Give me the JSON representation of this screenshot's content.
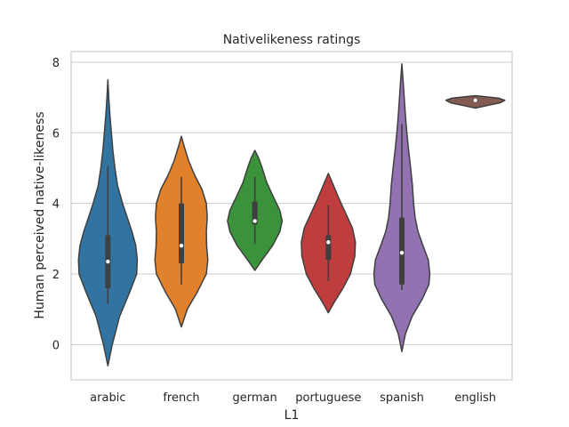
{
  "chart_data": {
    "type": "violin",
    "title": "Nativelikeness ratings",
    "xlabel": "L1",
    "ylabel": "Human perceived native-likeness",
    "ylim": [
      -1.0,
      8.3
    ],
    "yticks": [
      0,
      2,
      4,
      6,
      8
    ],
    "grid": true,
    "legend": "none",
    "categories": [
      "arabic",
      "french",
      "german",
      "portuguese",
      "spanish",
      "english"
    ],
    "colors": [
      "#3274a1",
      "#e1812c",
      "#3a923a",
      "#c03d3e",
      "#9372b2",
      "#845b53"
    ],
    "series": [
      {
        "category": "arabic",
        "kde_range": [
          -0.6,
          7.5
        ],
        "median": 2.35,
        "q1": 1.6,
        "q3": 3.1,
        "whisker_low": 1.15,
        "whisker_high": 5.05,
        "profile": [
          [
            -0.6,
            0.0
          ],
          [
            0.0,
            0.15
          ],
          [
            0.8,
            0.4
          ],
          [
            1.5,
            0.75
          ],
          [
            2.0,
            0.98
          ],
          [
            2.4,
            1.0
          ],
          [
            2.8,
            0.95
          ],
          [
            3.2,
            0.82
          ],
          [
            3.6,
            0.66
          ],
          [
            4.0,
            0.5
          ],
          [
            4.5,
            0.33
          ],
          [
            5.0,
            0.24
          ],
          [
            5.5,
            0.17
          ],
          [
            6.0,
            0.12
          ],
          [
            6.5,
            0.07
          ],
          [
            7.0,
            0.03
          ],
          [
            7.5,
            0.0
          ]
        ]
      },
      {
        "category": "french",
        "kde_range": [
          0.5,
          5.9
        ],
        "median": 2.8,
        "q1": 2.3,
        "q3": 4.0,
        "whisker_low": 1.7,
        "whisker_high": 4.75,
        "profile": [
          [
            0.5,
            0.0
          ],
          [
            1.0,
            0.2
          ],
          [
            1.5,
            0.55
          ],
          [
            2.0,
            0.85
          ],
          [
            2.4,
            0.9
          ],
          [
            2.8,
            0.86
          ],
          [
            3.2,
            0.85
          ],
          [
            3.6,
            0.88
          ],
          [
            4.0,
            0.85
          ],
          [
            4.4,
            0.7
          ],
          [
            4.8,
            0.45
          ],
          [
            5.2,
            0.25
          ],
          [
            5.6,
            0.1
          ],
          [
            5.9,
            0.0
          ]
        ]
      },
      {
        "category": "german",
        "kde_range": [
          2.1,
          5.5
        ],
        "median": 3.5,
        "q1": 3.4,
        "q3": 4.05,
        "whisker_low": 2.85,
        "whisker_high": 4.75,
        "profile": [
          [
            2.1,
            0.0
          ],
          [
            2.4,
            0.25
          ],
          [
            2.8,
            0.6
          ],
          [
            3.2,
            0.85
          ],
          [
            3.5,
            0.93
          ],
          [
            3.8,
            0.85
          ],
          [
            4.2,
            0.62
          ],
          [
            4.6,
            0.4
          ],
          [
            5.0,
            0.25
          ],
          [
            5.3,
            0.12
          ],
          [
            5.5,
            0.0
          ]
        ]
      },
      {
        "category": "portuguese",
        "kde_range": [
          0.9,
          4.85
        ],
        "median": 2.9,
        "q1": 2.4,
        "q3": 3.1,
        "whisker_low": 1.8,
        "whisker_high": 3.95,
        "profile": [
          [
            0.9,
            0.0
          ],
          [
            1.2,
            0.2
          ],
          [
            1.6,
            0.5
          ],
          [
            2.0,
            0.75
          ],
          [
            2.5,
            0.9
          ],
          [
            2.9,
            0.92
          ],
          [
            3.3,
            0.82
          ],
          [
            3.7,
            0.6
          ],
          [
            4.1,
            0.38
          ],
          [
            4.5,
            0.18
          ],
          [
            4.85,
            0.0
          ]
        ]
      },
      {
        "category": "spanish",
        "kde_range": [
          -0.2,
          7.95
        ],
        "median": 2.6,
        "q1": 1.7,
        "q3": 3.6,
        "whisker_low": 1.55,
        "whisker_high": 6.25,
        "profile": [
          [
            -0.2,
            0.0
          ],
          [
            0.3,
            0.12
          ],
          [
            0.8,
            0.35
          ],
          [
            1.3,
            0.7
          ],
          [
            1.7,
            0.92
          ],
          [
            2.0,
            0.95
          ],
          [
            2.4,
            0.9
          ],
          [
            2.8,
            0.72
          ],
          [
            3.2,
            0.55
          ],
          [
            3.6,
            0.45
          ],
          [
            4.0,
            0.4
          ],
          [
            4.5,
            0.36
          ],
          [
            5.0,
            0.3
          ],
          [
            5.5,
            0.23
          ],
          [
            6.0,
            0.17
          ],
          [
            6.5,
            0.12
          ],
          [
            7.0,
            0.08
          ],
          [
            7.5,
            0.04
          ],
          [
            7.95,
            0.0
          ]
        ]
      },
      {
        "category": "english",
        "kde_range": [
          6.7,
          7.05
        ],
        "median": 6.92,
        "q1": 6.88,
        "q3": 6.96,
        "whisker_low": 6.85,
        "whisker_high": 6.99,
        "profile": [
          [
            6.7,
            0.0
          ],
          [
            6.78,
            0.45
          ],
          [
            6.85,
            0.85
          ],
          [
            6.92,
            1.0
          ],
          [
            6.98,
            0.8
          ],
          [
            7.02,
            0.35
          ],
          [
            7.05,
            0.0
          ]
        ]
      }
    ]
  }
}
